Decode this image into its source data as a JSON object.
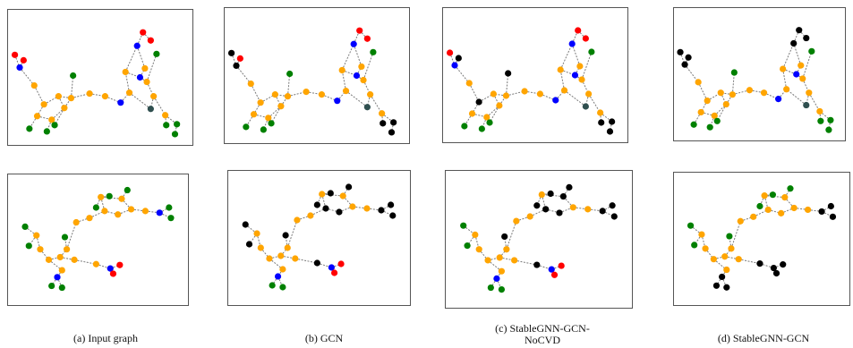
{
  "captions": {
    "a": "(a) Input graph",
    "b": "(b) GCN",
    "c": "(c) StableGNN-GCN-NoCVD",
    "d": "(d) StableGNN-GCN"
  },
  "node_colors": {
    "O": "#ffa500",
    "N": "#0000ff",
    "R": "#ff0000",
    "G": "#008000",
    "D": "#2f4f4f",
    "K": "#000000"
  },
  "edge_color": "#7a7a7a",
  "graph_top": {
    "nodes": [
      [
        7,
        50,
        "R"
      ],
      [
        12,
        64,
        "N"
      ],
      [
        16,
        56,
        "R"
      ],
      [
        27,
        84,
        "O"
      ],
      [
        37,
        105,
        "O"
      ],
      [
        30,
        118,
        "O"
      ],
      [
        22,
        132,
        "G"
      ],
      [
        45,
        122,
        "O"
      ],
      [
        40,
        135,
        "G"
      ],
      [
        52,
        96,
        "O"
      ],
      [
        58,
        109,
        "O"
      ],
      [
        65,
        98,
        "O"
      ],
      [
        67,
        73,
        "G"
      ],
      [
        48,
        128,
        "G"
      ],
      [
        84,
        93,
        "O"
      ],
      [
        100,
        96,
        "O"
      ],
      [
        116,
        103,
        "N"
      ],
      [
        125,
        92,
        "O"
      ],
      [
        121,
        69,
        "O"
      ],
      [
        133,
        40,
        "N"
      ],
      [
        139,
        25,
        "R"
      ],
      [
        147,
        34,
        "R"
      ],
      [
        136,
        75,
        "N"
      ],
      [
        143,
        80,
        "O"
      ],
      [
        153,
        49,
        "G"
      ],
      [
        150,
        96,
        "O"
      ],
      [
        147,
        110,
        "D"
      ],
      [
        162,
        117,
        "O"
      ],
      [
        163,
        128,
        "G"
      ],
      [
        174,
        127,
        "G"
      ],
      [
        172,
        138,
        "G"
      ],
      [
        141,
        65,
        "O"
      ]
    ],
    "edges": [
      [
        0,
        1
      ],
      [
        1,
        2
      ],
      [
        1,
        3
      ],
      [
        3,
        4
      ],
      [
        4,
        5
      ],
      [
        5,
        6
      ],
      [
        5,
        7
      ],
      [
        7,
        8
      ],
      [
        4,
        9
      ],
      [
        9,
        10
      ],
      [
        10,
        11
      ],
      [
        11,
        9
      ],
      [
        11,
        12
      ],
      [
        10,
        13
      ],
      [
        11,
        14
      ],
      [
        14,
        15
      ],
      [
        15,
        16
      ],
      [
        16,
        17
      ],
      [
        17,
        18
      ],
      [
        18,
        19
      ],
      [
        19,
        20
      ],
      [
        20,
        21
      ],
      [
        18,
        22
      ],
      [
        22,
        23
      ],
      [
        23,
        24
      ],
      [
        22,
        31
      ],
      [
        31,
        19
      ],
      [
        23,
        25
      ],
      [
        25,
        26
      ],
      [
        26,
        17
      ],
      [
        25,
        27
      ],
      [
        27,
        28
      ],
      [
        27,
        29
      ],
      [
        29,
        30
      ],
      [
        7,
        10
      ]
    ],
    "colorings": {
      "a": "RNROOOGOGOOOGGOONOONRRNOGODOGGGO",
      "b": "KKROOOGOGOOOGGOONOONRRNOGODOKKKO",
      "c": "RNKOKOGOGOOOKGOONOONRRNOGODOKKKO",
      "d": "KKKOOOGOGOOOGGOONOOKKKNOGODOGGGO"
    }
  },
  "graph_bottom": {
    "nodes": [
      [
        18,
        60,
        "G"
      ],
      [
        30,
        70,
        "O"
      ],
      [
        22,
        82,
        "G"
      ],
      [
        34,
        86,
        "O"
      ],
      [
        43,
        98,
        "O"
      ],
      [
        55,
        95,
        "O"
      ],
      [
        62,
        86,
        "O"
      ],
      [
        60,
        72,
        "G"
      ],
      [
        70,
        98,
        "O"
      ],
      [
        57,
        110,
        "O"
      ],
      [
        52,
        118,
        "N"
      ],
      [
        46,
        128,
        "G"
      ],
      [
        57,
        130,
        "G"
      ],
      [
        93,
        103,
        "O"
      ],
      [
        108,
        108,
        "N"
      ],
      [
        118,
        104,
        "R"
      ],
      [
        111,
        114,
        "R"
      ],
      [
        72,
        55,
        "O"
      ],
      [
        86,
        50,
        "O"
      ],
      [
        102,
        42,
        "O"
      ],
      [
        116,
        46,
        "O"
      ],
      [
        130,
        40,
        "O"
      ],
      [
        120,
        28,
        "O"
      ],
      [
        126,
        18,
        "G"
      ],
      [
        107,
        25,
        "G"
      ],
      [
        93,
        38,
        "G"
      ],
      [
        98,
        26,
        "O"
      ],
      [
        145,
        42,
        "O"
      ],
      [
        160,
        44,
        "N"
      ],
      [
        170,
        38,
        "G"
      ],
      [
        172,
        50,
        "G"
      ]
    ],
    "edges": [
      [
        0,
        1
      ],
      [
        1,
        2
      ],
      [
        1,
        3
      ],
      [
        3,
        4
      ],
      [
        4,
        5
      ],
      [
        5,
        6
      ],
      [
        6,
        7
      ],
      [
        5,
        8
      ],
      [
        4,
        9
      ],
      [
        9,
        10
      ],
      [
        10,
        11
      ],
      [
        10,
        12
      ],
      [
        8,
        13
      ],
      [
        13,
        14
      ],
      [
        14,
        15
      ],
      [
        14,
        16
      ],
      [
        6,
        17
      ],
      [
        17,
        18
      ],
      [
        18,
        19
      ],
      [
        19,
        20
      ],
      [
        20,
        21
      ],
      [
        21,
        22
      ],
      [
        22,
        23
      ],
      [
        22,
        26
      ],
      [
        26,
        24
      ],
      [
        26,
        19
      ],
      [
        26,
        25
      ],
      [
        21,
        27
      ],
      [
        27,
        28
      ],
      [
        28,
        29
      ],
      [
        28,
        30
      ]
    ],
    "colorings": {
      "a": "GOGOOOOGOONGGONRROOOOOOGGGOONGG",
      "b": "KOKOOOOKOONGGKNRROOKKOOKKKOOKKK",
      "c": "GOGOOOOKOONGGKNRROOKKOKKKKOOKKK",
      "d": "GOGOOOOGOOKKKKKKKOOOOOOGGGOOKKK"
    }
  }
}
